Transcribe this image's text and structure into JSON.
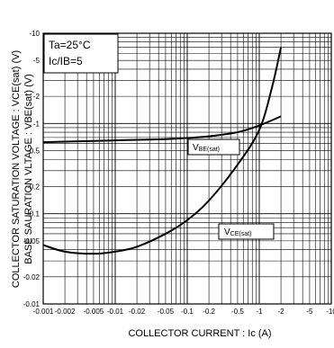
{
  "chart_data": {
    "type": "line",
    "xscale": "log",
    "yscale": "log",
    "xlim": [
      0.001,
      10
    ],
    "ylim": [
      0.01,
      10
    ],
    "grid": true,
    "xlabel": "COLLECTOR CURRENT : Ic (A)",
    "ylabel_lines": [
      "COLLECTOR SATURATION VOLTAGE : VCE(sat) (V)",
      "BASE SAURATION VLTAGE : VBE(sat) (V)"
    ],
    "x_ticks": [
      {
        "value": 0.001,
        "label": "-0.001"
      },
      {
        "value": 0.002,
        "label": "-0.002"
      },
      {
        "value": 0.005,
        "label": "-0.005"
      },
      {
        "value": 0.01,
        "label": "-0.01"
      },
      {
        "value": 0.02,
        "label": "-0.02"
      },
      {
        "value": 0.05,
        "label": "-0.05"
      },
      {
        "value": 0.1,
        "label": "-0.1"
      },
      {
        "value": 0.2,
        "label": "-0.2"
      },
      {
        "value": 0.5,
        "label": "-0.5"
      },
      {
        "value": 1,
        "label": "-1"
      },
      {
        "value": 2,
        "label": "-2"
      },
      {
        "value": 5,
        "label": "-5"
      },
      {
        "value": 10,
        "label": "-10"
      }
    ],
    "y_ticks": [
      {
        "value": 0.01,
        "label": "-0.01"
      },
      {
        "value": 0.02,
        "label": "-0.02"
      },
      {
        "value": 0.05,
        "label": "-0.05"
      },
      {
        "value": 0.1,
        "label": "-0.1"
      },
      {
        "value": 0.2,
        "label": "-0.2"
      },
      {
        "value": 0.5,
        "label": "-0.5"
      },
      {
        "value": 1,
        "label": "-1"
      },
      {
        "value": 2,
        "label": "-2"
      },
      {
        "value": 5,
        "label": "-5"
      },
      {
        "value": 10,
        "label": "-10"
      }
    ],
    "conditions": [
      "Ta=25°C",
      "Ic/IB=5"
    ],
    "series": [
      {
        "name": "VBE(sat)",
        "x": [
          0.001,
          0.002,
          0.005,
          0.01,
          0.02,
          0.05,
          0.1,
          0.2,
          0.5,
          1,
          2
        ],
        "y": [
          0.62,
          0.63,
          0.64,
          0.65,
          0.66,
          0.67,
          0.69,
          0.72,
          0.8,
          0.95,
          1.2
        ]
      },
      {
        "name": "VCE(sat)",
        "x": [
          0.001,
          0.002,
          0.005,
          0.01,
          0.02,
          0.05,
          0.1,
          0.2,
          0.5,
          1,
          1.5,
          2
        ],
        "y": [
          0.045,
          0.038,
          0.036,
          0.038,
          0.043,
          0.06,
          0.085,
          0.14,
          0.35,
          0.85,
          2.5,
          7
        ]
      }
    ],
    "annotations": {
      "vbe": {
        "base": "V",
        "sub": "BE(sat)"
      },
      "vce": {
        "base": "V",
        "sub": "CE(sat)"
      }
    }
  }
}
